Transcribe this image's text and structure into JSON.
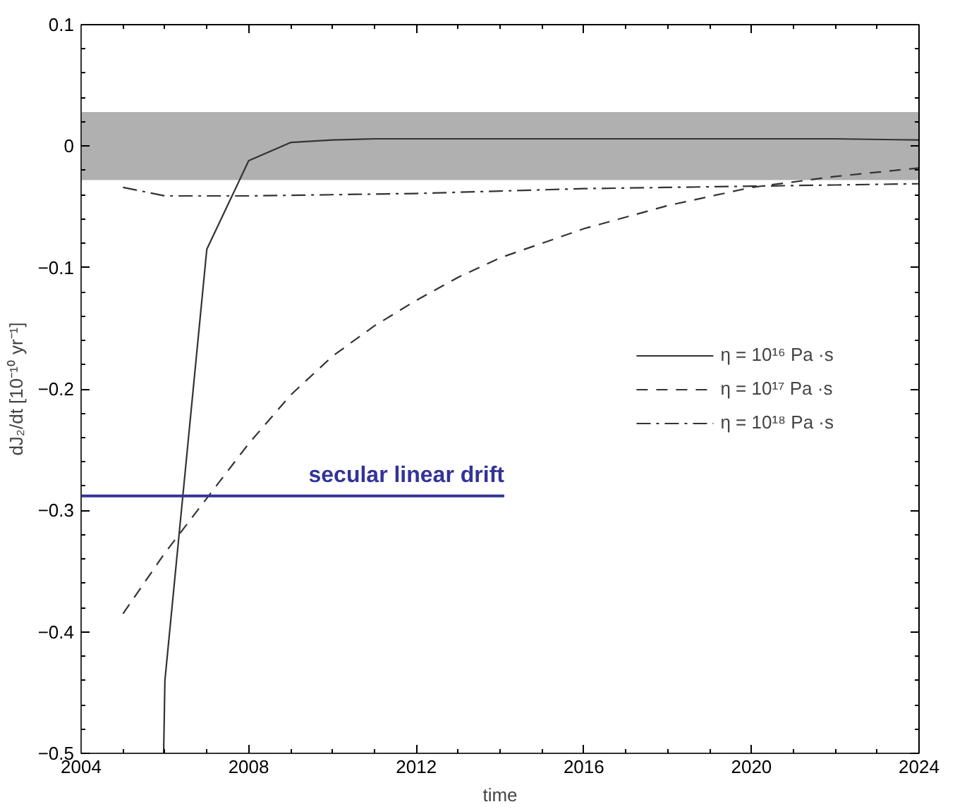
{
  "chart_data": {
    "type": "line",
    "xlabel": "time",
    "ylabel": "dJ₂/dt [10⁻¹⁰ yr⁻¹]",
    "xlim": [
      2004,
      2024
    ],
    "xticks": [
      2004,
      2008,
      2012,
      2016,
      2020,
      2024
    ],
    "ylim": [
      -0.5,
      0.1
    ],
    "yticks": [
      {
        "value": -0.5,
        "label": "−0.5"
      },
      {
        "value": -0.4,
        "label": "−0.4"
      },
      {
        "value": -0.3,
        "label": "−0.3"
      },
      {
        "value": -0.2,
        "label": "−0.2"
      },
      {
        "value": -0.1,
        "label": "−0.1"
      },
      0,
      0.1
    ],
    "grid": false,
    "legend": "right",
    "marker": "none",
    "bands": [
      {
        "axis": "y",
        "from": -0.028,
        "to": 0.028,
        "color": "#b0b0b0"
      }
    ],
    "series": [
      {
        "name": "η = 10¹⁶ Pa ·s",
        "color": "#333333",
        "line_style": "solid",
        "x": [
          2005.97,
          2006,
          2007,
          2008,
          2009,
          2010,
          2011,
          2014,
          2018,
          2022,
          2024
        ],
        "values": [
          -0.5,
          -0.44,
          -0.085,
          -0.012,
          0.003,
          0.005,
          0.006,
          0.006,
          0.006,
          0.006,
          0.005
        ]
      },
      {
        "name": "η = 10¹⁷ Pa ·s",
        "color": "#333333",
        "line_style": "dashed",
        "x": [
          2005,
          2006,
          2007,
          2008,
          2009,
          2010,
          2011,
          2012,
          2013,
          2014,
          2016,
          2018,
          2020,
          2022,
          2024
        ],
        "values": [
          -0.385,
          -0.335,
          -0.29,
          -0.245,
          -0.205,
          -0.173,
          -0.148,
          -0.127,
          -0.108,
          -0.092,
          -0.068,
          -0.049,
          -0.034,
          -0.025,
          -0.018
        ]
      },
      {
        "name": "η = 10¹⁸ Pa ·s",
        "color": "#333333",
        "line_style": "dashdot",
        "x": [
          2005,
          2006,
          2007,
          2008,
          2010,
          2012,
          2014,
          2016,
          2018,
          2020,
          2022,
          2024
        ],
        "values": [
          -0.034,
          -0.041,
          -0.041,
          -0.041,
          -0.04,
          -0.039,
          -0.037,
          -0.035,
          -0.034,
          -0.033,
          -0.032,
          -0.031
        ]
      },
      {
        "color": "#333399",
        "line_style": "solid",
        "x": [
          2004,
          2014.1
        ],
        "values": [
          -0.288,
          -0.288
        ]
      }
    ],
    "annotations": [
      {
        "text": "secular linear drift",
        "x": 2014.1,
        "y": -0.288
      }
    ]
  }
}
